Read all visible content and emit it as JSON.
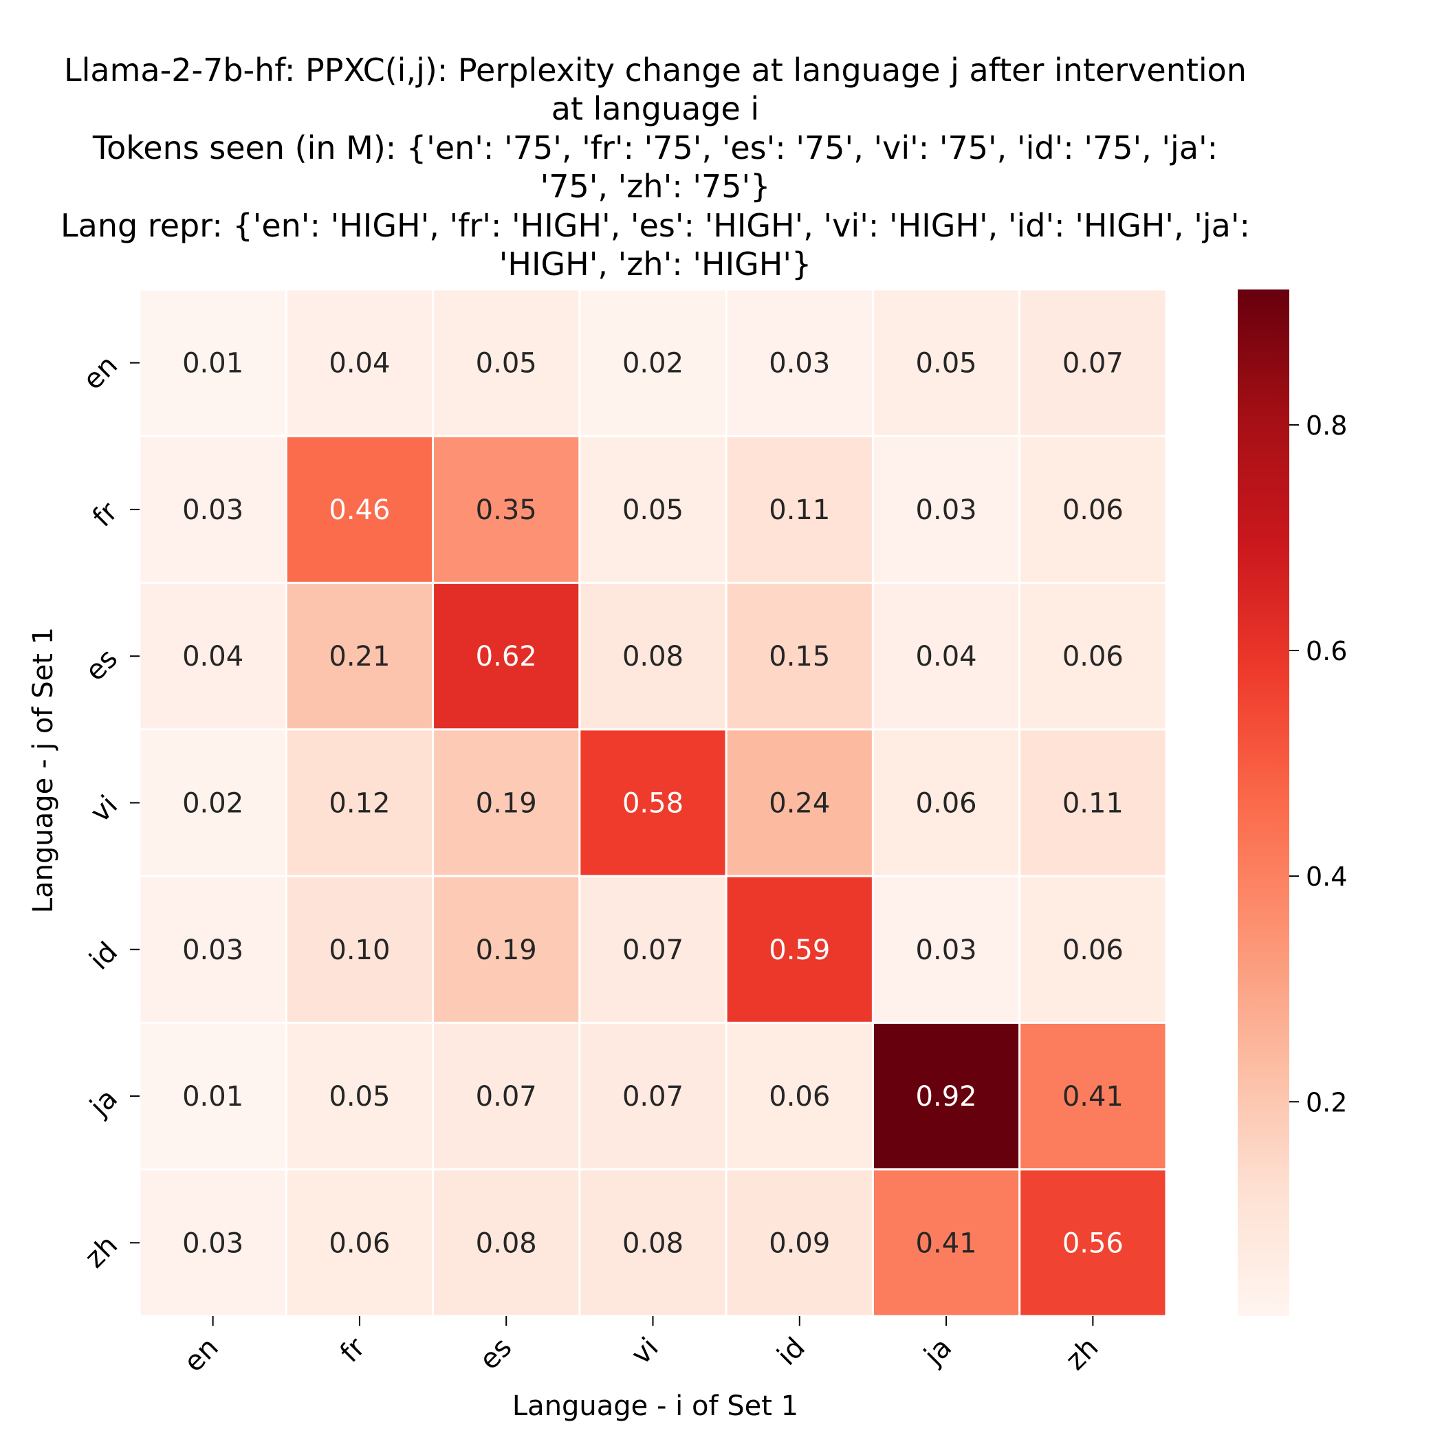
{
  "chart_data": {
    "type": "heatmap",
    "title_lines": [
      "Llama-2-7b-hf: PPXC(i,j): Perplexity change at language j after intervention",
      "at language i",
      "Tokens seen (in M): {'en': '75', 'fr': '75', 'es': '75', 'vi': '75', 'id': '75', 'ja':",
      "'75', 'zh': '75'}",
      "Lang repr: {'en': 'HIGH', 'fr': 'HIGH', 'es': 'HIGH', 'vi': 'HIGH', 'id': 'HIGH', 'ja':",
      "'HIGH', 'zh': 'HIGH'}"
    ],
    "xlabel": "Language - i of Set 1",
    "ylabel": "Language - j of Set 1",
    "x_categories": [
      "en",
      "fr",
      "es",
      "vi",
      "id",
      "ja",
      "zh"
    ],
    "y_categories": [
      "en",
      "fr",
      "es",
      "vi",
      "id",
      "ja",
      "zh"
    ],
    "values": [
      [
        0.01,
        0.04,
        0.05,
        0.02,
        0.03,
        0.05,
        0.07
      ],
      [
        0.03,
        0.46,
        0.35,
        0.05,
        0.11,
        0.03,
        0.06
      ],
      [
        0.04,
        0.21,
        0.62,
        0.08,
        0.15,
        0.04,
        0.06
      ],
      [
        0.02,
        0.12,
        0.19,
        0.58,
        0.24,
        0.06,
        0.11
      ],
      [
        0.03,
        0.1,
        0.19,
        0.07,
        0.59,
        0.03,
        0.06
      ],
      [
        0.01,
        0.05,
        0.07,
        0.07,
        0.06,
        0.92,
        0.41
      ],
      [
        0.03,
        0.06,
        0.08,
        0.08,
        0.09,
        0.41,
        0.56
      ]
    ],
    "value_labels": [
      [
        "0.01",
        "0.04",
        "0.05",
        "0.02",
        "0.03",
        "0.05",
        "0.07"
      ],
      [
        "0.03",
        "0.46",
        "0.35",
        "0.05",
        "0.11",
        "0.03",
        "0.06"
      ],
      [
        "0.04",
        "0.21",
        "0.62",
        "0.08",
        "0.15",
        "0.04",
        "0.06"
      ],
      [
        "0.02",
        "0.12",
        "0.19",
        "0.58",
        "0.24",
        "0.06",
        "0.11"
      ],
      [
        "0.03",
        "0.10",
        "0.19",
        "0.07",
        "0.59",
        "0.03",
        "0.06"
      ],
      [
        "0.01",
        "0.05",
        "0.07",
        "0.07",
        "0.06",
        "0.92",
        "0.41"
      ],
      [
        "0.03",
        "0.06",
        "0.08",
        "0.08",
        "0.09",
        "0.41",
        "0.56"
      ]
    ],
    "colormap": "Reds",
    "colormap_stops": [
      "#fff5f0",
      "#fee0d2",
      "#fcbba1",
      "#fc9272",
      "#fb6a4a",
      "#ef3b2c",
      "#cb181d",
      "#a50f15",
      "#67000d"
    ],
    "vmin": 0.01,
    "vmax": 0.92,
    "colorbar_ticks": [
      0.2,
      0.4,
      0.6,
      0.8
    ],
    "colorbar_tick_labels": [
      "0.2",
      "0.4",
      "0.6",
      "0.8"
    ],
    "grid_line_color": "#ffffff"
  }
}
